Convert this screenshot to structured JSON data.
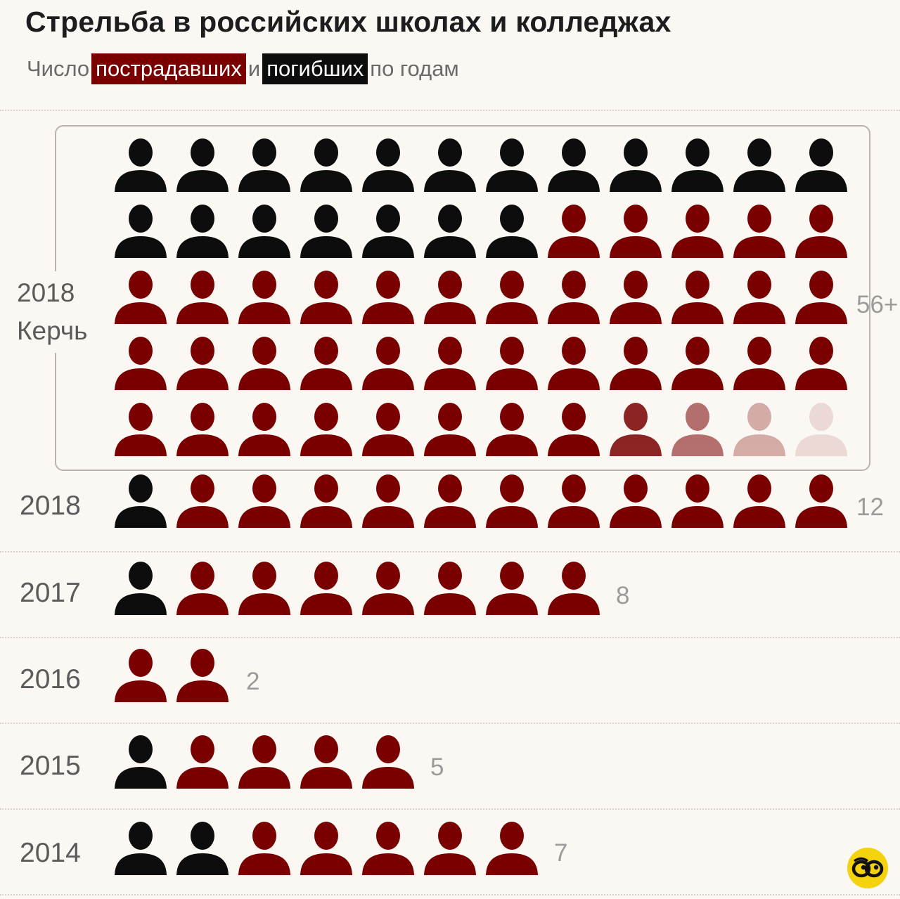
{
  "title": "Стрельба в российских школах и колледжах",
  "subtitle": {
    "prefix": "Число",
    "injured": "пострадавших",
    "and": "и",
    "killed": "погибших",
    "suffix": "по годам"
  },
  "colors": {
    "injured": "#7a0000",
    "killed": "#0d0d0d",
    "background": "#fbf8f3",
    "logo": "#f4d20e"
  },
  "logo_icon": "eyes-logo-icon",
  "chart_data": {
    "type": "pictogram",
    "rows": [
      {
        "year": "2018",
        "place": "Керчь",
        "killed": 19,
        "injured": 37,
        "total_label": "56+"
      },
      {
        "year": "2018",
        "place": "",
        "killed": 1,
        "injured": 11,
        "total_label": "12"
      },
      {
        "year": "2017",
        "place": "",
        "killed": 1,
        "injured": 7,
        "total_label": "8"
      },
      {
        "year": "2016",
        "place": "",
        "killed": 0,
        "injured": 2,
        "total_label": "2"
      },
      {
        "year": "2015",
        "place": "",
        "killed": 1,
        "injured": 4,
        "total_label": "5"
      },
      {
        "year": "2014",
        "place": "",
        "killed": 2,
        "injured": 5,
        "total_label": "7"
      }
    ]
  }
}
